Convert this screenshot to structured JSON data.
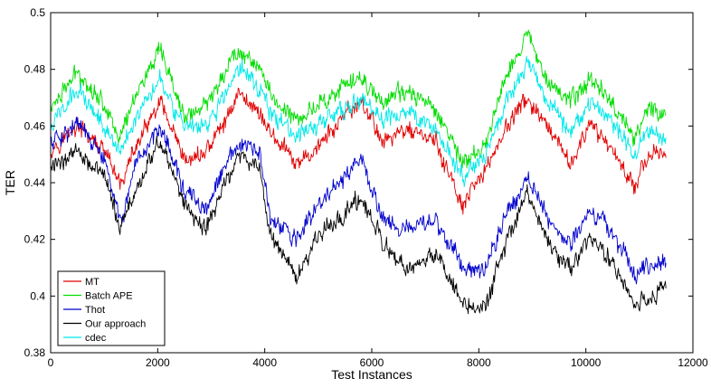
{
  "chart_data": {
    "type": "line",
    "title": "",
    "xlabel": "Test Instances",
    "ylabel": "TER",
    "xlim": [
      0,
      12000
    ],
    "ylim": [
      0.38,
      0.5
    ],
    "xticks": [
      0,
      2000,
      4000,
      6000,
      8000,
      10000,
      12000
    ],
    "yticks": [
      0.38,
      0.4,
      0.42,
      0.44,
      0.46,
      0.48,
      0.5
    ],
    "xtick_labels": [
      "0",
      "2000",
      "4000",
      "6000",
      "8000",
      "10000",
      "12000"
    ],
    "ytick_labels": [
      "0.38",
      "0.4",
      "0.42",
      "0.44",
      "0.46",
      "0.48",
      "0.5"
    ],
    "grid": false,
    "legend_position": "bottom-left",
    "series": [
      {
        "name": "MT",
        "color": "#e00000",
        "x": [
          0,
          500,
          1000,
          1300,
          1600,
          2050,
          2500,
          2900,
          3300,
          3500,
          3900,
          4100,
          4600,
          5000,
          5800,
          6200,
          6700,
          7200,
          7700,
          8100,
          8500,
          8900,
          9300,
          9700,
          10100,
          10500,
          10900,
          11200,
          11500
        ],
        "values": [
          0.452,
          0.46,
          0.451,
          0.439,
          0.453,
          0.468,
          0.447,
          0.451,
          0.463,
          0.472,
          0.465,
          0.458,
          0.446,
          0.453,
          0.469,
          0.455,
          0.459,
          0.454,
          0.431,
          0.444,
          0.459,
          0.47,
          0.458,
          0.447,
          0.46,
          0.452,
          0.439,
          0.451,
          0.448
        ]
      },
      {
        "name": "Batch APE",
        "color": "#00dd00",
        "x": [
          0,
          500,
          1000,
          1300,
          1600,
          2050,
          2500,
          2900,
          3300,
          3500,
          3900,
          4100,
          4600,
          5000,
          5800,
          6200,
          6700,
          7200,
          7700,
          8100,
          8500,
          8900,
          9300,
          9700,
          10100,
          10500,
          10900,
          11200,
          11500
        ],
        "values": [
          0.466,
          0.479,
          0.468,
          0.456,
          0.472,
          0.486,
          0.463,
          0.467,
          0.481,
          0.487,
          0.481,
          0.471,
          0.462,
          0.468,
          0.477,
          0.469,
          0.472,
          0.466,
          0.447,
          0.452,
          0.478,
          0.492,
          0.477,
          0.468,
          0.477,
          0.468,
          0.456,
          0.466,
          0.465
        ]
      },
      {
        "name": "Thot",
        "color": "#0000cc",
        "x": [
          0,
          500,
          1000,
          1300,
          1600,
          2050,
          2500,
          2900,
          3300,
          3500,
          3900,
          4100,
          4600,
          5000,
          5800,
          6200,
          6700,
          7200,
          7700,
          8100,
          8500,
          8900,
          9300,
          9700,
          10100,
          10500,
          10900,
          11200,
          11500
        ],
        "values": [
          0.454,
          0.461,
          0.448,
          0.426,
          0.445,
          0.461,
          0.437,
          0.43,
          0.447,
          0.453,
          0.451,
          0.427,
          0.42,
          0.432,
          0.448,
          0.428,
          0.423,
          0.427,
          0.41,
          0.41,
          0.428,
          0.442,
          0.428,
          0.418,
          0.43,
          0.423,
          0.408,
          0.41,
          0.414
        ]
      },
      {
        "name": "Our approach",
        "color": "#000000",
        "x": [
          0,
          500,
          1000,
          1300,
          1600,
          2050,
          2500,
          2900,
          3300,
          3500,
          3900,
          4100,
          4600,
          5000,
          5800,
          6200,
          6700,
          7200,
          7700,
          8100,
          8500,
          8900,
          9300,
          9700,
          10100,
          10500,
          10900,
          11200,
          11500
        ],
        "values": [
          0.445,
          0.452,
          0.442,
          0.424,
          0.438,
          0.455,
          0.432,
          0.423,
          0.442,
          0.449,
          0.446,
          0.422,
          0.407,
          0.421,
          0.435,
          0.418,
          0.408,
          0.415,
          0.398,
          0.395,
          0.418,
          0.435,
          0.419,
          0.409,
          0.421,
          0.412,
          0.397,
          0.399,
          0.404
        ]
      },
      {
        "name": "cdec",
        "color": "#00e8e8",
        "x": [
          0,
          500,
          1000,
          1300,
          1600,
          2050,
          2500,
          2900,
          3300,
          3500,
          3900,
          4100,
          4600,
          5000,
          5800,
          6200,
          6700,
          7200,
          7700,
          8100,
          8500,
          8900,
          9300,
          9700,
          10100,
          10500,
          10900,
          11200,
          11500
        ],
        "values": [
          0.46,
          0.473,
          0.461,
          0.45,
          0.464,
          0.478,
          0.458,
          0.46,
          0.472,
          0.481,
          0.474,
          0.465,
          0.456,
          0.461,
          0.469,
          0.462,
          0.465,
          0.459,
          0.442,
          0.448,
          0.468,
          0.482,
          0.468,
          0.459,
          0.468,
          0.461,
          0.45,
          0.458,
          0.455
        ]
      }
    ]
  }
}
